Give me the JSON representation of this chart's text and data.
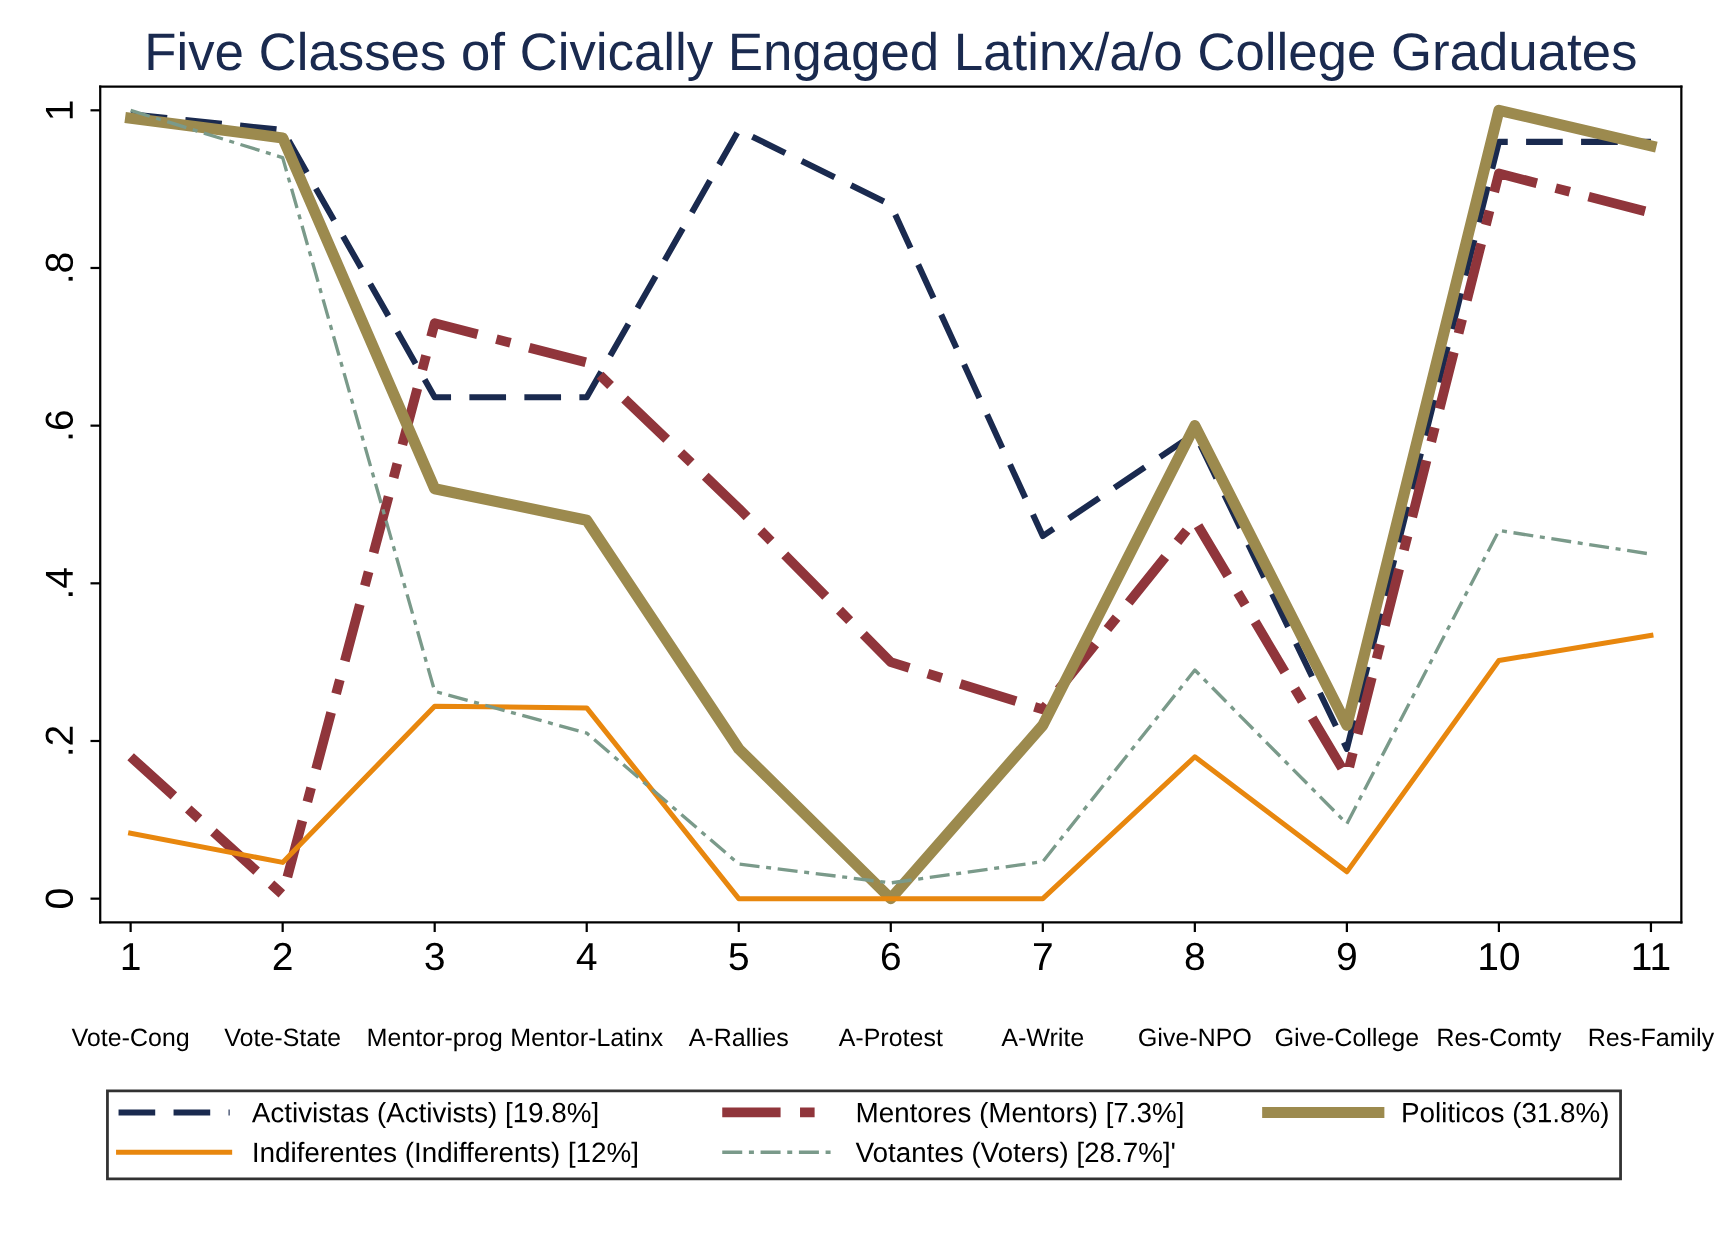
{
  "chart_data": {
    "type": "line",
    "title": "Five Classes of Civically Engaged Latinx/a/o College Graduates",
    "x": [
      1,
      2,
      3,
      4,
      5,
      6,
      7,
      8,
      9,
      10,
      11
    ],
    "xlim": [
      0.8,
      11.2
    ],
    "xticks": [
      1,
      2,
      3,
      4,
      5,
      6,
      7,
      8,
      9,
      10,
      11
    ],
    "ylim": [
      -0.03,
      1.03
    ],
    "yticks": [
      {
        "value": 0,
        "label": "0"
      },
      {
        "value": 0.2,
        "label": ".2"
      },
      {
        "value": 0.4,
        "label": ".4"
      },
      {
        "value": 0.6,
        "label": ".6"
      },
      {
        "value": 0.8,
        "label": ".8"
      },
      {
        "value": 1,
        "label": "1"
      }
    ],
    "annotations": [
      "Vote-Cong",
      "Vote-State",
      "Mentor-prog",
      "Mentor-Latinx",
      "A-Rallies",
      "A-Protest",
      "A-Write",
      "Give-NPO",
      "Give-College",
      "Res-Comty",
      "Res-Family"
    ],
    "series": [
      {
        "name": "Activistas (Activists) [19.8%]",
        "color": "#1a2a4f",
        "line_style": "dashed",
        "values": [
          0.995,
          0.975,
          0.636,
          0.636,
          0.975,
          0.88,
          0.46,
          0.59,
          0.19,
          0.96,
          0.96
        ]
      },
      {
        "name": "Mentores (Mentors) [7.3%]",
        "color": "#90353b",
        "line_style": "dashdot",
        "values": [
          0.18,
          0.005,
          0.73,
          0.68,
          0.495,
          0.3,
          0.24,
          0.48,
          0.155,
          0.92,
          0.87
        ]
      },
      {
        "name": "Politicos (31.8%)",
        "color": "#9c8a4e",
        "line_style": "solid",
        "values": [
          0.99,
          0.965,
          0.52,
          0.48,
          0.19,
          0.0,
          0.22,
          0.6,
          0.22,
          1.0,
          0.955
        ]
      },
      {
        "name": "Indiferentes (Indifferents) [12%]",
        "color": "#e8870e",
        "line_style": "solid",
        "values": [
          0.083,
          0.046,
          0.244,
          0.242,
          0.0,
          0.0,
          0.0,
          0.18,
          0.034,
          0.302,
          0.334
        ]
      },
      {
        "name": "Votantes (Voters) [28.7%]'",
        "color": "#7a9a8a",
        "line_style": "dashdot",
        "values": [
          1.0,
          0.94,
          0.263,
          0.21,
          0.044,
          0.02,
          0.047,
          0.29,
          0.095,
          0.467,
          0.437
        ]
      }
    ],
    "legend": "bottom",
    "grid": false,
    "marker": "none"
  }
}
